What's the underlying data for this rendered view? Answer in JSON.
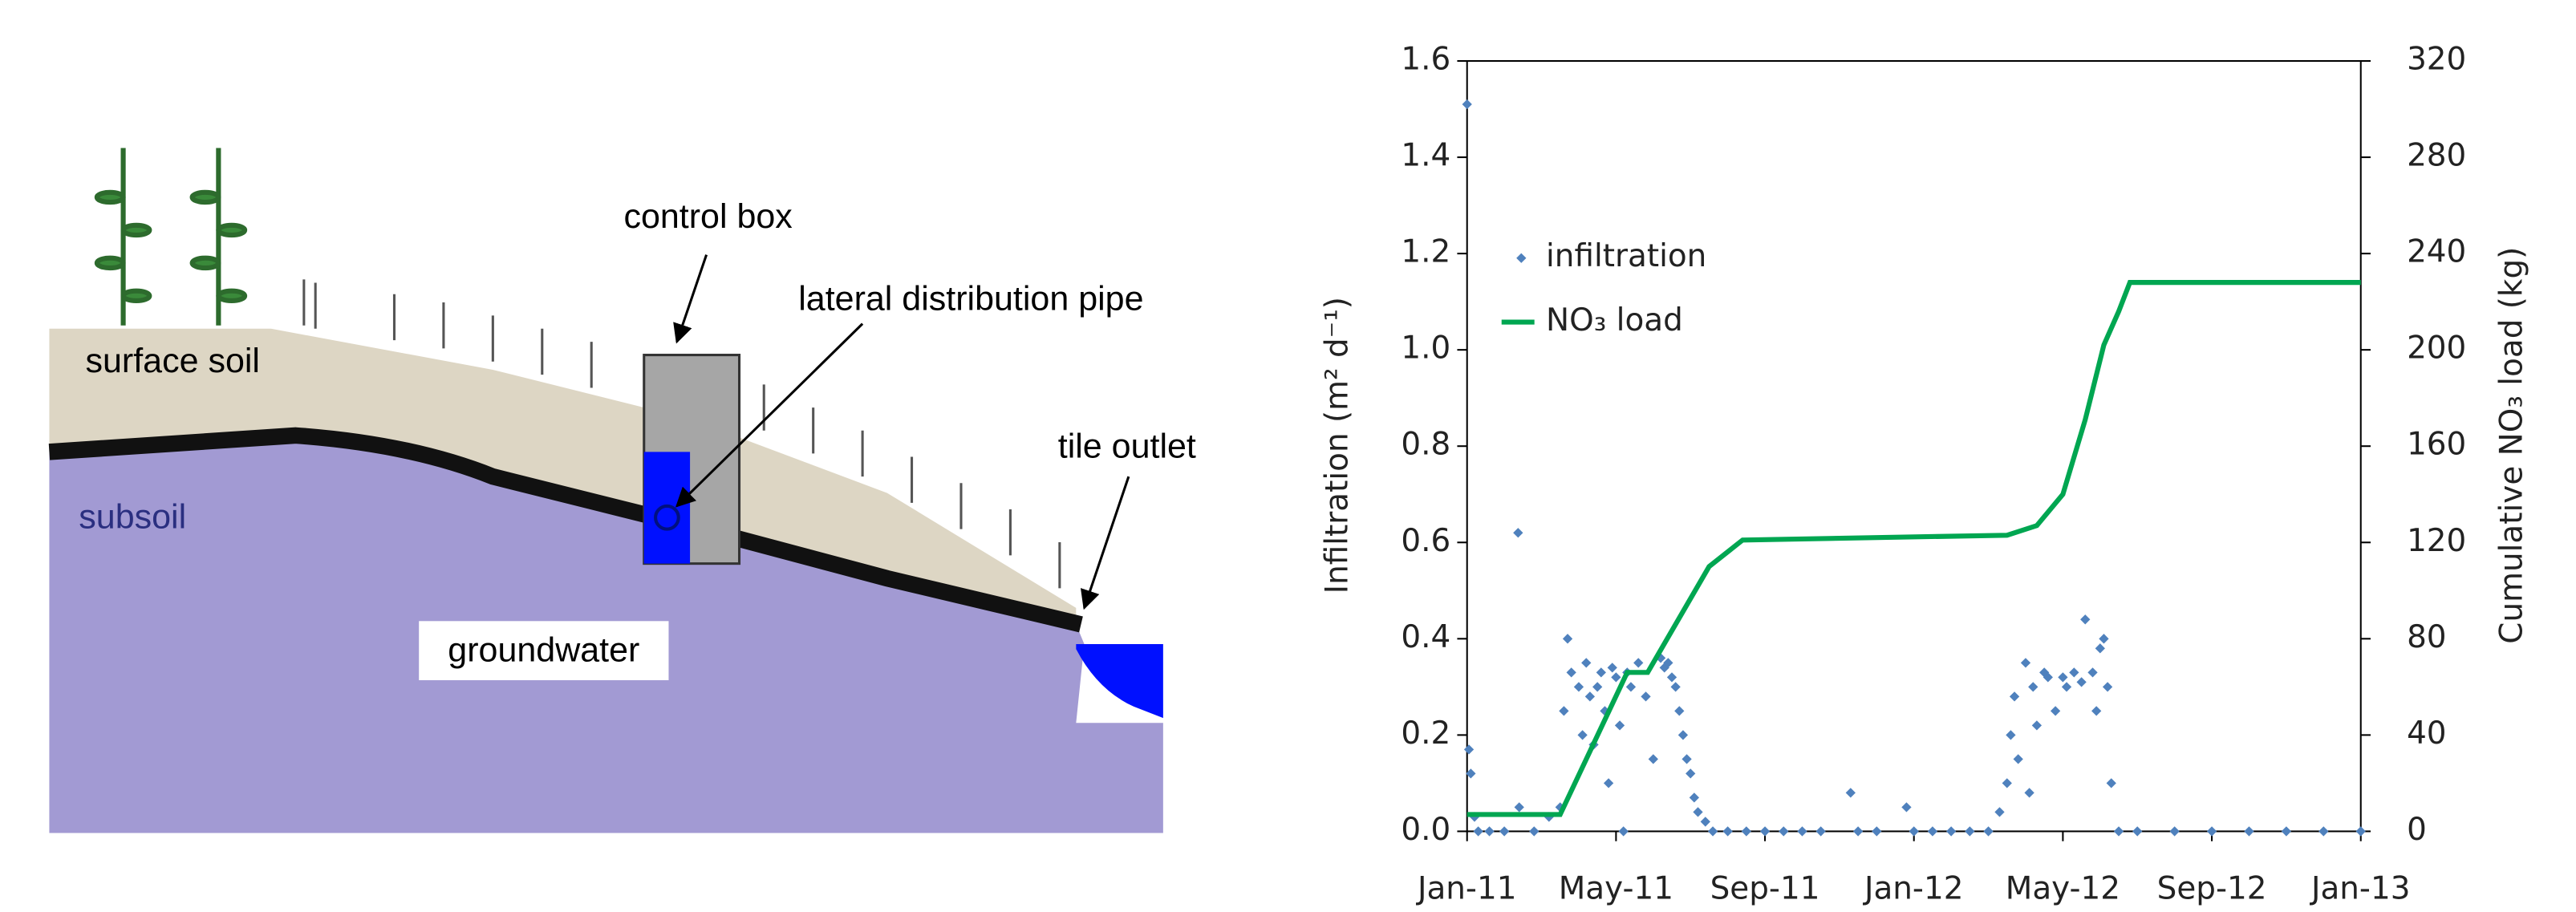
{
  "diagram": {
    "labels": {
      "surface_soil": "surface soil",
      "subsoil": "subsoil",
      "groundwater": "groundwater",
      "control_box": "control box",
      "pipe": "lateral distribution pipe",
      "tile_outlet": "tile outlet"
    }
  },
  "chart_data": {
    "type": "scatter-line",
    "xlim": [
      0,
      24
    ],
    "xticks": [
      {
        "value": 0,
        "label": "Jan-11"
      },
      {
        "value": 4,
        "label": "May-11"
      },
      {
        "value": 8,
        "label": "Sep-11"
      },
      {
        "value": 12,
        "label": "Jan-12"
      },
      {
        "value": 16,
        "label": "May-12"
      },
      {
        "value": 20,
        "label": "Sep-12"
      },
      {
        "value": 24,
        "label": "Jan-13"
      }
    ],
    "ylim": [
      0,
      1.6
    ],
    "yticks": [
      {
        "value": 0,
        "label": "0.0"
      },
      {
        "value": 0.2,
        "label": "0.2"
      },
      {
        "value": 0.4,
        "label": "0.4"
      },
      {
        "value": 0.6,
        "label": "0.6"
      },
      {
        "value": 0.8,
        "label": "0.8"
      },
      {
        "value": 1,
        "label": "1.0"
      },
      {
        "value": 1.2,
        "label": "1.2"
      },
      {
        "value": 1.4,
        "label": "1.4"
      },
      {
        "value": 1.6,
        "label": "1.6"
      }
    ],
    "y2lim": [
      0,
      320
    ],
    "y2ticks": [
      0,
      40,
      80,
      120,
      160,
      200,
      240,
      280,
      320
    ],
    "ylabel": "Infiltration (m² d⁻¹)",
    "y2label": "Cumulative NO₃ load (kg)",
    "legend": "upper left",
    "series": [
      {
        "name": "infiltration",
        "type": "scatter",
        "color": "#4f81bd",
        "x": [
          0,
          0.05,
          0.1,
          0.2,
          0.3,
          0.6,
          1.0,
          1.37,
          1.4,
          1.8,
          2.2,
          2.5,
          2.6,
          2.7,
          2.8,
          3.0,
          3.1,
          3.2,
          3.3,
          3.4,
          3.5,
          3.6,
          3.7,
          3.8,
          3.9,
          4.0,
          4.1,
          4.2,
          4.3,
          4.4,
          4.6,
          4.8,
          5.0,
          5.2,
          5.3,
          5.4,
          5.5,
          5.6,
          5.7,
          5.8,
          5.9,
          6.0,
          6.1,
          6.2,
          6.4,
          6.6,
          7,
          7.5,
          8,
          8.5,
          9,
          9.5,
          10.3,
          10.5,
          11,
          11.8,
          12,
          12.5,
          13,
          13.5,
          14,
          14.3,
          14.5,
          14.6,
          14.7,
          14.8,
          15.0,
          15.1,
          15.2,
          15.3,
          15.5,
          15.6,
          15.8,
          16.0,
          16.1,
          16.3,
          16.5,
          16.6,
          16.8,
          16.9,
          17.0,
          17.1,
          17.2,
          17.3,
          17.5,
          18,
          19,
          20,
          21,
          22,
          23,
          24
        ],
        "values": [
          1.51,
          0.17,
          0.12,
          0.03,
          0,
          0,
          0,
          0.62,
          0.05,
          0,
          0.03,
          0.05,
          0.25,
          0.4,
          0.33,
          0.3,
          0.2,
          0.35,
          0.28,
          0.18,
          0.3,
          0.33,
          0.25,
          0.1,
          0.34,
          0.32,
          0.22,
          0,
          0.33,
          0.3,
          0.35,
          0.28,
          0.15,
          0.36,
          0.34,
          0.35,
          0.32,
          0.3,
          0.25,
          0.2,
          0.15,
          0.12,
          0.07,
          0.04,
          0.02,
          0,
          0,
          0,
          0,
          0,
          0,
          0,
          0.08,
          0,
          0,
          0.05,
          0,
          0,
          0,
          0,
          0,
          0.04,
          0.1,
          0.2,
          0.28,
          0.15,
          0.35,
          0.08,
          0.3,
          0.22,
          0.33,
          0.32,
          0.25,
          0.32,
          0.3,
          0.33,
          0.31,
          0.44,
          0.33,
          0.25,
          0.38,
          0.4,
          0.3,
          0.1,
          0,
          0,
          0,
          0,
          0,
          0,
          0,
          0
        ]
      },
      {
        "name": "NO₃ load",
        "type": "line",
        "axis": "y2",
        "color": "#00a651",
        "x": [
          0,
          2.5,
          4.3,
          4.85,
          6.5,
          7.4,
          14.5,
          15.3,
          16.0,
          16.6,
          17.1,
          17.5,
          17.8,
          24
        ],
        "values": [
          7,
          7,
          66,
          66,
          110,
          121,
          123,
          127,
          140,
          171,
          202,
          216,
          228,
          228
        ]
      }
    ]
  }
}
